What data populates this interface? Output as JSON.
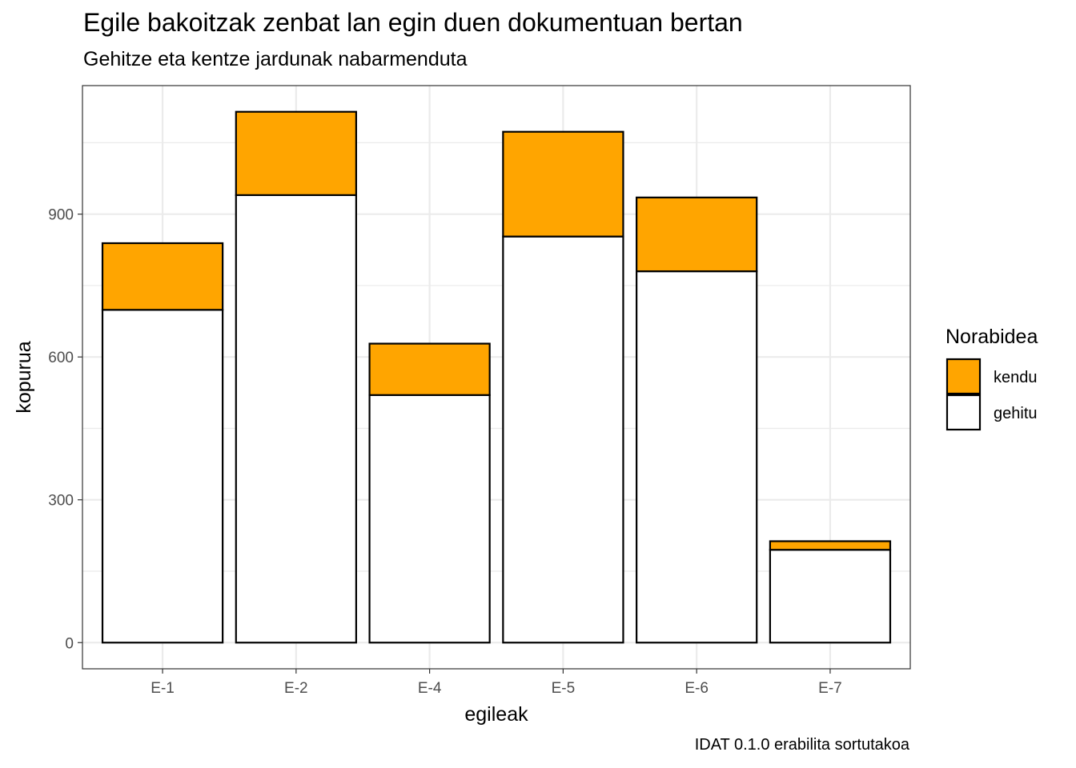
{
  "chart_data": {
    "type": "bar",
    "stacked": true,
    "title": "Egile bakoitzak zenbat lan egin duen dokumentuan bertan",
    "subtitle": "Gehitze eta kentze jardunak nabarmenduta",
    "caption": "IDAT 0.1.0 erabilita sortutakoa",
    "xlabel": "egileak",
    "ylabel": "kopurua",
    "categories": [
      "E-1",
      "E-2",
      "E-4",
      "E-5",
      "E-6",
      "E-7"
    ],
    "series": [
      {
        "name": "gehitu",
        "values": [
          699,
          940,
          520,
          853,
          780,
          195
        ],
        "color": "#ffffff"
      },
      {
        "name": "kendu",
        "values": [
          140,
          175,
          108,
          220,
          155,
          18
        ],
        "color": "#ffa500"
      }
    ],
    "ylim": [
      -55,
      1170
    ],
    "yticks": [
      0,
      300,
      600,
      900
    ],
    "yticks_labels": [
      "0",
      "300",
      "600",
      "900"
    ],
    "legend": {
      "title": "Norabidea",
      "position": "right",
      "order": [
        "kendu",
        "gehitu"
      ]
    },
    "grid": true,
    "theme": "bw"
  }
}
